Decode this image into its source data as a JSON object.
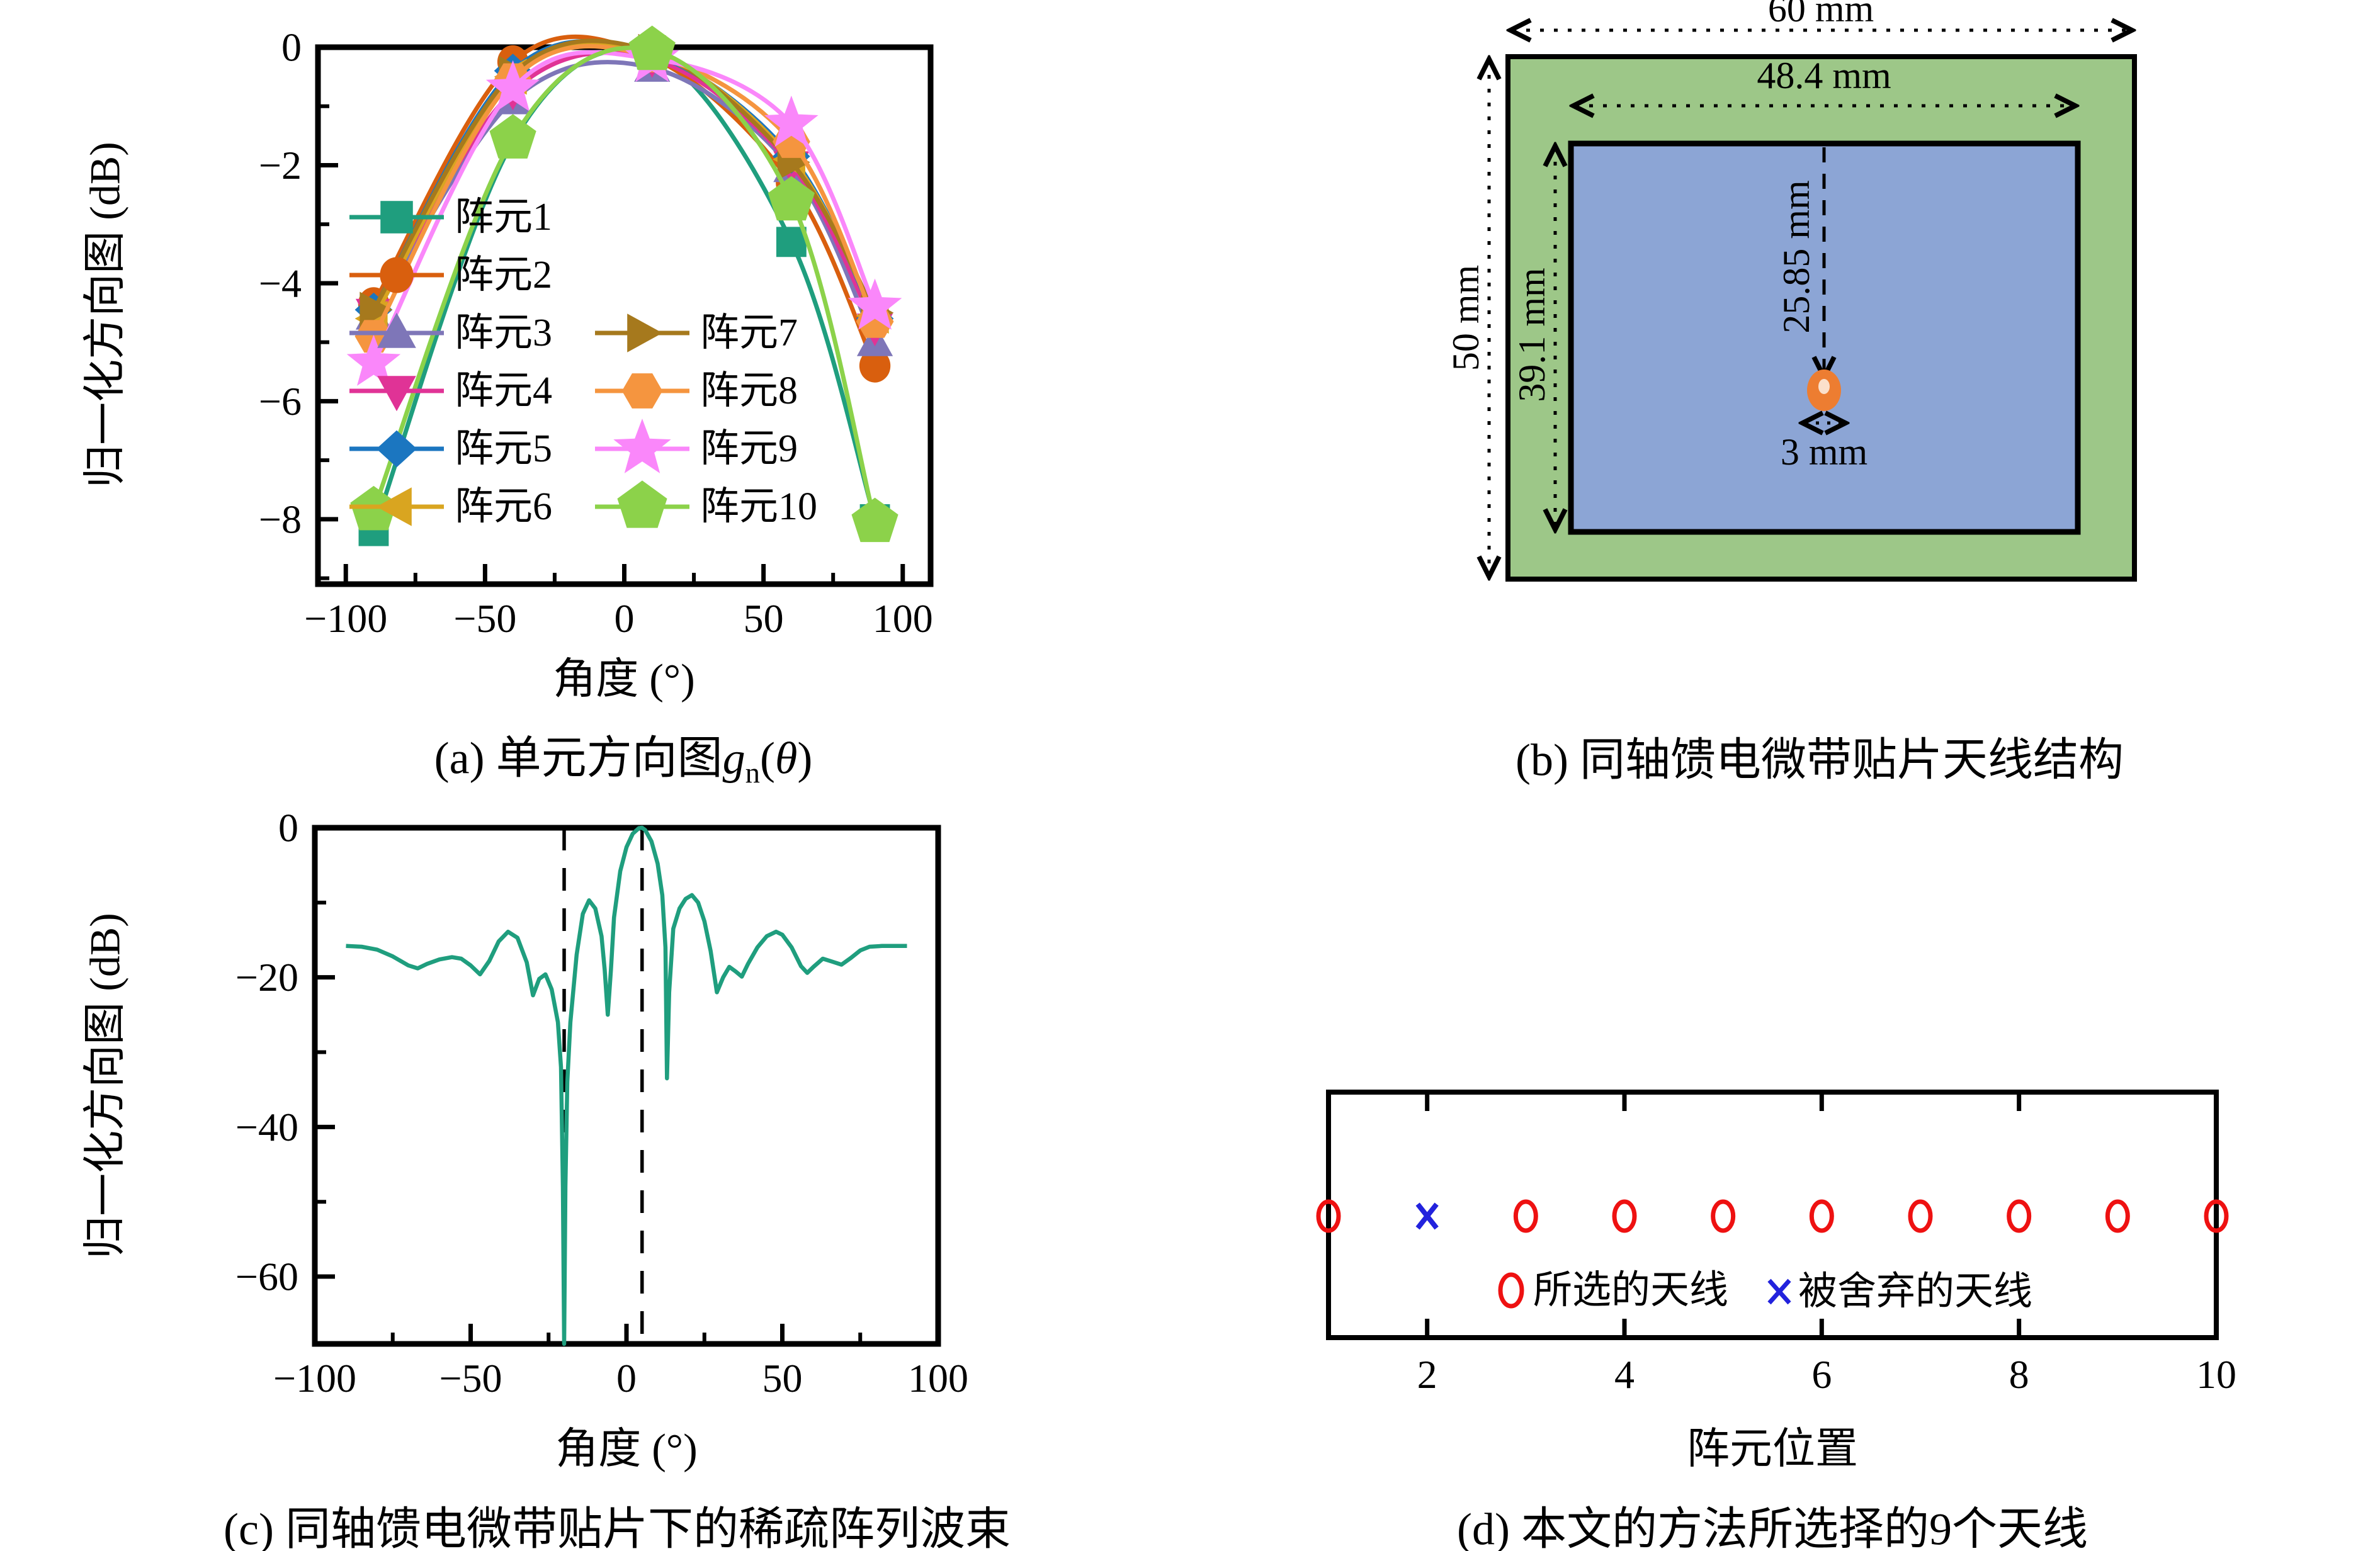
{
  "page": {
    "background": "#ffffff"
  },
  "panels": {
    "a": {
      "caption_prefix": "(a) 单元方向图",
      "caption_g": "g",
      "caption_sub": "n",
      "caption_open": "(",
      "caption_theta": "θ",
      "caption_close": ")",
      "xlabel": "角度 (°)",
      "ylabel": "归一化方向图 (dB)"
    },
    "b": {
      "caption": "(b) 同轴馈电微带贴片天线结构",
      "dim_outer_width": "60 mm",
      "dim_inner_width": "48.4 mm",
      "dim_outer_height": "50 mm",
      "dim_inner_height": "39.1 mm",
      "dim_feed_offset": "25.85 mm",
      "dim_feed_diameter": "3 mm",
      "colors": {
        "substrate": "#9dc788",
        "patch": "#8ca5d5",
        "feed": "#ed7d31",
        "feed_center": "#fbe0cb"
      }
    },
    "c": {
      "caption": "(c) 同轴馈电微带贴片下的稀疏阵列波束",
      "xlabel": "角度 (°)",
      "ylabel": "归一化方向图 (dB)"
    },
    "d": {
      "caption": "(d) 本文的方法所选择的9个天线",
      "xlabel": "阵元位置"
    }
  },
  "chart_data": [
    {
      "id": "a",
      "type": "line",
      "title": "(a) 单元方向图 gn(θ)",
      "xlabel": "角度 (°)",
      "ylabel": "归一化方向图 (dB)",
      "xlim": [
        -110,
        110
      ],
      "ylim": [
        0,
        -9.1
      ],
      "xticks": [
        -100,
        -50,
        0,
        50,
        100
      ],
      "xticks_minor": [
        -75,
        -25,
        25,
        75
      ],
      "yticks": [
        0,
        -2,
        -4,
        -6,
        -8
      ],
      "yticks_minor": [
        -1,
        -3,
        -5,
        -7,
        -9
      ],
      "grid": false,
      "legend_position": "inside-center",
      "x": [
        -90,
        -40,
        10,
        60,
        90
      ],
      "series": [
        {
          "name": "阵元1",
          "marker": "square",
          "color": "#1f9e7e",
          "values": [
            -8.2,
            -1.6,
            -0.12,
            -3.3,
            -8.0
          ]
        },
        {
          "name": "阵元2",
          "marker": "circle",
          "color": "#d95f0e",
          "values": [
            -4.35,
            -0.25,
            -0.18,
            -2.3,
            -5.4
          ]
        },
        {
          "name": "阵元3",
          "marker": "triangle-up",
          "color": "#7e76b8",
          "values": [
            -4.55,
            -0.9,
            -0.35,
            -2.05,
            -5.0
          ]
        },
        {
          "name": "阵元4",
          "marker": "triangle-down",
          "color": "#e03396",
          "values": [
            -4.5,
            -0.75,
            -0.2,
            -2.0,
            -4.75
          ]
        },
        {
          "name": "阵元5",
          "marker": "diamond",
          "color": "#1b76c0",
          "values": [
            -4.45,
            -0.4,
            -0.12,
            -1.85,
            -4.6
          ]
        },
        {
          "name": "阵元6",
          "marker": "triangle-left",
          "color": "#d9a520",
          "values": [
            -4.6,
            -0.5,
            -0.1,
            -1.9,
            -4.55
          ]
        },
        {
          "name": "阵元7",
          "marker": "triangle-right",
          "color": "#a6791d",
          "values": [
            -4.45,
            -0.45,
            -0.08,
            -1.95,
            -4.5
          ]
        },
        {
          "name": "阵元8",
          "marker": "hexagon",
          "color": "#f5953f",
          "values": [
            -4.9,
            -0.55,
            -0.15,
            -1.6,
            -4.65
          ]
        },
        {
          "name": "阵元9",
          "marker": "star",
          "color": "#fa87fa",
          "values": [
            -5.35,
            -0.7,
            -0.2,
            -1.3,
            -4.4
          ]
        },
        {
          "name": "阵元10",
          "marker": "pentagon",
          "color": "#8cd24a",
          "values": [
            -7.85,
            -1.55,
            -0.05,
            -2.6,
            -8.05
          ]
        }
      ]
    },
    {
      "id": "c",
      "type": "line",
      "title": "(c) 同轴馈电微带贴片下的稀疏阵列波束",
      "xlabel": "角度 (°)",
      "ylabel": "归一化方向图 (dB)",
      "xlim": [
        -100,
        100
      ],
      "ylim": [
        0,
        -69
      ],
      "xticks": [
        -100,
        -50,
        0,
        50,
        100
      ],
      "xticks_minor": [
        -75,
        -25,
        25,
        75
      ],
      "yticks": [
        0,
        -20,
        -40,
        -60
      ],
      "yticks_minor": [
        -10,
        -30,
        -50
      ],
      "grid": false,
      "dashed_vlines": [
        -20,
        5
      ],
      "series": [
        {
          "name": "稀疏阵列波束",
          "color": "#1f9e7e",
          "points": [
            [
              -90,
              -15.8
            ],
            [
              -85,
              -15.9
            ],
            [
              -80,
              -16.3
            ],
            [
              -75,
              -17.2
            ],
            [
              -70,
              -18.4
            ],
            [
              -67,
              -18.8
            ],
            [
              -64,
              -18.2
            ],
            [
              -60,
              -17.6
            ],
            [
              -56,
              -17.3
            ],
            [
              -53,
              -17.5
            ],
            [
              -50,
              -18.4
            ],
            [
              -47,
              -19.6
            ],
            [
              -44,
              -17.8
            ],
            [
              -41,
              -15.2
            ],
            [
              -38,
              -13.9
            ],
            [
              -35,
              -14.7
            ],
            [
              -32,
              -18
            ],
            [
              -30,
              -22.4
            ],
            [
              -28,
              -20.2
            ],
            [
              -26,
              -19.6
            ],
            [
              -24,
              -21.6
            ],
            [
              -22,
              -26
            ],
            [
              -21,
              -32
            ],
            [
              -20.4,
              -48
            ],
            [
              -20,
              -69
            ],
            [
              -19.6,
              -48
            ],
            [
              -19,
              -34
            ],
            [
              -18,
              -26
            ],
            [
              -16,
              -17
            ],
            [
              -14,
              -11.5
            ],
            [
              -12,
              -9.7
            ],
            [
              -10,
              -10.8
            ],
            [
              -8,
              -14.5
            ],
            [
              -7,
              -19
            ],
            [
              -6,
              -25
            ],
            [
              -5,
              -19
            ],
            [
              -4,
              -12
            ],
            [
              -2,
              -5.8
            ],
            [
              0,
              -2.6
            ],
            [
              2,
              -0.8
            ],
            [
              4,
              -0.05
            ],
            [
              5,
              0
            ],
            [
              6,
              -0.3
            ],
            [
              8,
              -1.8
            ],
            [
              10,
              -4.8
            ],
            [
              11.5,
              -9
            ],
            [
              12.5,
              -16
            ],
            [
              13,
              -33.5
            ],
            [
              13.7,
              -22
            ],
            [
              15,
              -13.5
            ],
            [
              17,
              -10.8
            ],
            [
              19,
              -9.5
            ],
            [
              21,
              -9
            ],
            [
              23,
              -10
            ],
            [
              25,
              -12.5
            ],
            [
              27,
              -16.5
            ],
            [
              29,
              -22
            ],
            [
              31,
              -20
            ],
            [
              33,
              -18.6
            ],
            [
              35,
              -19.2
            ],
            [
              37,
              -19.9
            ],
            [
              39,
              -18.2
            ],
            [
              42,
              -16
            ],
            [
              45,
              -14.5
            ],
            [
              48,
              -13.9
            ],
            [
              50,
              -14.3
            ],
            [
              53,
              -16
            ],
            [
              56,
              -18.5
            ],
            [
              58,
              -19.4
            ],
            [
              60,
              -18.6
            ],
            [
              63,
              -17.5
            ],
            [
              66,
              -17.9
            ],
            [
              69,
              -18.3
            ],
            [
              72,
              -17.4
            ],
            [
              75,
              -16.4
            ],
            [
              78,
              -15.9
            ],
            [
              82,
              -15.8
            ],
            [
              86,
              -15.8
            ],
            [
              90,
              -15.8
            ]
          ]
        }
      ]
    },
    {
      "id": "d",
      "type": "scatter",
      "title": "(d) 本文的方法所选择的9个天线",
      "xlabel": "阵元位置",
      "xlim": [
        1,
        10
      ],
      "xticks": [
        2,
        4,
        6,
        8,
        10
      ],
      "selected_positions": [
        1,
        3,
        4,
        5,
        6,
        7,
        8,
        9,
        10
      ],
      "discarded_positions": [
        2
      ],
      "legend": [
        {
          "label": "所选的天线",
          "marker": "circle",
          "color": "#ee1111"
        },
        {
          "label": "被舍弃的天线",
          "marker": "x",
          "color": "#2222dd"
        }
      ]
    }
  ]
}
